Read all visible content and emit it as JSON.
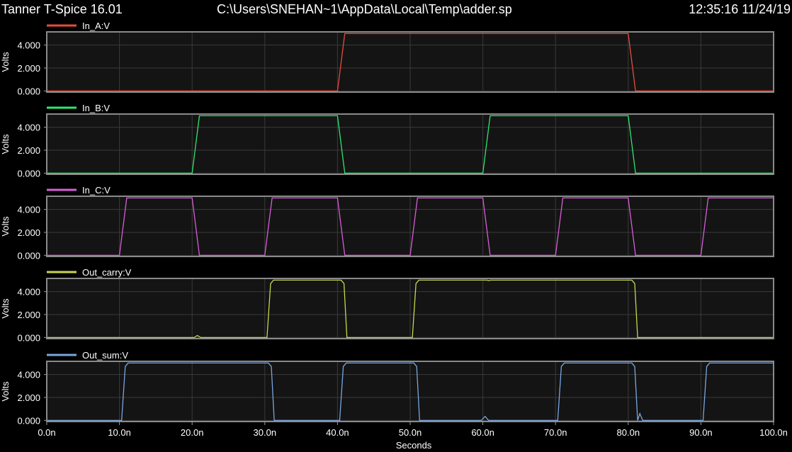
{
  "header": {
    "app_title": "Tanner T-Spice 16.01",
    "file_path": "C:\\Users\\SNEHAN~1\\AppData\\Local\\Temp\\adder.sp",
    "timestamp": "12:35:16 11/24/19"
  },
  "chart_data": {
    "type": "line",
    "xlabel": "Seconds",
    "x_range": [
      0,
      100
    ],
    "x_unit": "ns",
    "x_ticks": [
      "0.0n",
      "10.0n",
      "20.0n",
      "30.0n",
      "40.0n",
      "50.0n",
      "60.0n",
      "70.0n",
      "80.0n",
      "90.0n",
      "100.0n"
    ],
    "ylabel": "Volts",
    "y_ticks": [
      "0.000",
      "2.000",
      "4.000"
    ],
    "ylim": [
      -0.1,
      5.15
    ],
    "grid": true,
    "legend_placement": "top-left of each panel",
    "panels": [
      {
        "name": "In_A:V",
        "color": "#e84b3c",
        "points": [
          [
            0,
            0
          ],
          [
            40,
            0
          ],
          [
            41,
            5
          ],
          [
            80,
            5
          ],
          [
            81,
            0
          ],
          [
            100,
            0
          ]
        ]
      },
      {
        "name": "In_B:V",
        "color": "#2ee86b",
        "points": [
          [
            0,
            0
          ],
          [
            20,
            0
          ],
          [
            21,
            5
          ],
          [
            40,
            5
          ],
          [
            41,
            0
          ],
          [
            60,
            0
          ],
          [
            61,
            5
          ],
          [
            80,
            5
          ],
          [
            81,
            0
          ],
          [
            100,
            0
          ]
        ]
      },
      {
        "name": "In_C:V",
        "color": "#d95ed9",
        "points": [
          [
            0,
            0
          ],
          [
            10,
            0
          ],
          [
            11,
            5
          ],
          [
            20,
            5
          ],
          [
            21,
            0
          ],
          [
            30,
            0
          ],
          [
            31,
            5
          ],
          [
            40,
            5
          ],
          [
            41,
            0
          ],
          [
            50,
            0
          ],
          [
            51,
            5
          ],
          [
            60,
            5
          ],
          [
            61,
            0
          ],
          [
            70,
            0
          ],
          [
            71,
            5
          ],
          [
            80,
            5
          ],
          [
            81,
            0
          ],
          [
            90,
            0
          ],
          [
            91,
            5
          ],
          [
            100,
            5
          ]
        ]
      },
      {
        "name": "Out_carry:V",
        "color": "#c8d64b",
        "points": [
          [
            0,
            0
          ],
          [
            20.3,
            0
          ],
          [
            20.7,
            0.18
          ],
          [
            21.2,
            0
          ],
          [
            30.3,
            0
          ],
          [
            30.8,
            4.7
          ],
          [
            31.2,
            5
          ],
          [
            40.5,
            5
          ],
          [
            40.9,
            4.7
          ],
          [
            41.3,
            0
          ],
          [
            50.3,
            0
          ],
          [
            50.8,
            4.7
          ],
          [
            51.2,
            5
          ],
          [
            60.6,
            5
          ],
          [
            60.8,
            4.95
          ],
          [
            61,
            5
          ],
          [
            80.5,
            5
          ],
          [
            80.9,
            4.7
          ],
          [
            81.3,
            0
          ],
          [
            100,
            0
          ]
        ]
      },
      {
        "name": "Out_sum:V",
        "color": "#7aa6e0",
        "points": [
          [
            0,
            0
          ],
          [
            10.3,
            0
          ],
          [
            10.8,
            4.7
          ],
          [
            11.2,
            5
          ],
          [
            30.5,
            5
          ],
          [
            30.9,
            4.7
          ],
          [
            31.3,
            0
          ],
          [
            40.3,
            0
          ],
          [
            40.8,
            4.7
          ],
          [
            41.2,
            5
          ],
          [
            50.5,
            5
          ],
          [
            50.9,
            4.7
          ],
          [
            51.3,
            0
          ],
          [
            59.8,
            0
          ],
          [
            60.3,
            0.35
          ],
          [
            60.8,
            0
          ],
          [
            70.3,
            0
          ],
          [
            70.8,
            4.7
          ],
          [
            71.2,
            5
          ],
          [
            80.5,
            5
          ],
          [
            80.9,
            4.7
          ],
          [
            81.3,
            0
          ],
          [
            81.6,
            0.6
          ],
          [
            82,
            0
          ],
          [
            90.3,
            0
          ],
          [
            90.8,
            4.7
          ],
          [
            91.2,
            5
          ],
          [
            100,
            5
          ]
        ]
      }
    ]
  }
}
